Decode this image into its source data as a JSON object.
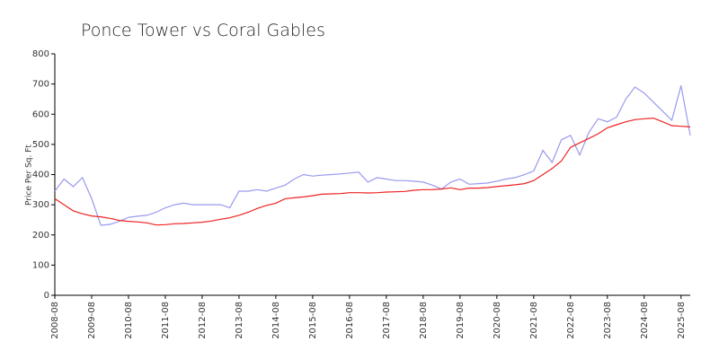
{
  "chart_data": {
    "type": "line",
    "title": "Ponce Tower vs Coral Gables",
    "ylabel": "Price Per Sq. Ft",
    "x": [
      "2008-08",
      "2008-11",
      "2009-02",
      "2009-05",
      "2009-08",
      "2009-11",
      "2010-02",
      "2010-05",
      "2010-08",
      "2010-11",
      "2011-02",
      "2011-05",
      "2011-08",
      "2011-11",
      "2012-02",
      "2012-05",
      "2012-08",
      "2012-11",
      "2013-02",
      "2013-05",
      "2013-08",
      "2013-11",
      "2014-02",
      "2014-05",
      "2014-08",
      "2014-11",
      "2015-02",
      "2015-05",
      "2015-08",
      "2015-11",
      "2016-02",
      "2016-05",
      "2016-08",
      "2016-11",
      "2017-02",
      "2017-05",
      "2017-08",
      "2017-11",
      "2018-02",
      "2018-05",
      "2018-08",
      "2018-11",
      "2019-02",
      "2019-05",
      "2019-08",
      "2019-11",
      "2020-02",
      "2020-05",
      "2020-08",
      "2020-11",
      "2021-02",
      "2021-05",
      "2021-08",
      "2021-11",
      "2022-02",
      "2022-05",
      "2022-08",
      "2022-11",
      "2023-02",
      "2023-05",
      "2023-08",
      "2023-11",
      "2024-02",
      "2024-05",
      "2024-08",
      "2024-11",
      "2025-02",
      "2025-05",
      "2025-08",
      "2025-11"
    ],
    "series": [
      {
        "color": "#9999ee",
        "values": [
          345,
          385,
          360,
          390,
          320,
          232,
          235,
          245,
          258,
          262,
          265,
          275,
          290,
          300,
          305,
          300,
          300,
          300,
          300,
          290,
          345,
          345,
          350,
          345,
          355,
          365,
          385,
          400,
          395,
          398,
          400,
          402,
          405,
          408,
          375,
          390,
          385,
          380,
          380,
          378,
          375,
          365,
          352,
          375,
          385,
          368,
          370,
          372,
          378,
          385,
          390,
          400,
          412,
          480,
          440,
          515,
          530,
          465,
          540,
          585,
          575,
          590,
          650,
          690,
          670,
          640,
          610,
          580,
          695,
          530
        ]
      },
      {
        "color": "#ee2222",
        "values": [
          320,
          300,
          280,
          270,
          263,
          260,
          255,
          248,
          245,
          243,
          240,
          233,
          234,
          237,
          238,
          240,
          242,
          246,
          252,
          257,
          265,
          275,
          288,
          298,
          305,
          320,
          323,
          326,
          330,
          335,
          336,
          337,
          340,
          340,
          339,
          340,
          342,
          343,
          344,
          348,
          350,
          350,
          352,
          356,
          350,
          355,
          355,
          357,
          360,
          363,
          366,
          370,
          380,
          400,
          420,
          445,
          490,
          505,
          520,
          535,
          555,
          565,
          575,
          582,
          585,
          587,
          575,
          562,
          560,
          558
        ]
      }
    ],
    "xlim": [
      "2008-08",
      "2025-11"
    ],
    "xticks": [
      "2008-08",
      "2009-08",
      "2010-08",
      "2011-08",
      "2012-08",
      "2013-08",
      "2014-08",
      "2015-08",
      "2016-08",
      "2017-08",
      "2018-08",
      "2019-08",
      "2020-08",
      "2021-08",
      "2022-08",
      "2023-08",
      "2024-08",
      "2025-08"
    ],
    "ylim": [
      0,
      800
    ],
    "yticks": [
      0,
      100,
      200,
      300,
      400,
      500,
      600,
      700,
      800
    ]
  }
}
